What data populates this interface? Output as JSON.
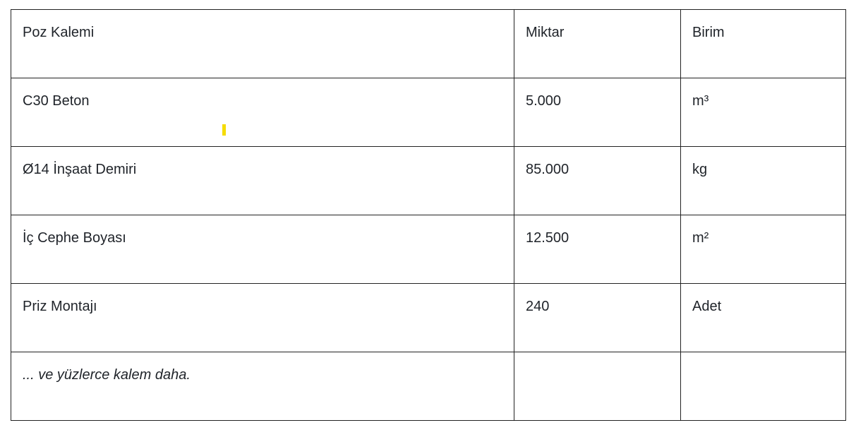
{
  "table": {
    "headers": [
      "Poz Kalemi",
      "Miktar",
      "Birim"
    ],
    "rows": [
      [
        "C30 Beton",
        "5.000",
        "m³"
      ],
      [
        "Ø14 İnşaat Demiri",
        "85.000",
        "kg"
      ],
      [
        "İç Cephe Boyası",
        "12.500",
        "m²"
      ],
      [
        "Priz Montajı",
        "240",
        "Adet"
      ],
      [
        "... ve yüzlerce kalem daha.",
        "",
        ""
      ]
    ]
  },
  "colors": {
    "cursor": "#f5dc00",
    "border": "#222222",
    "text": "#1f2329"
  }
}
